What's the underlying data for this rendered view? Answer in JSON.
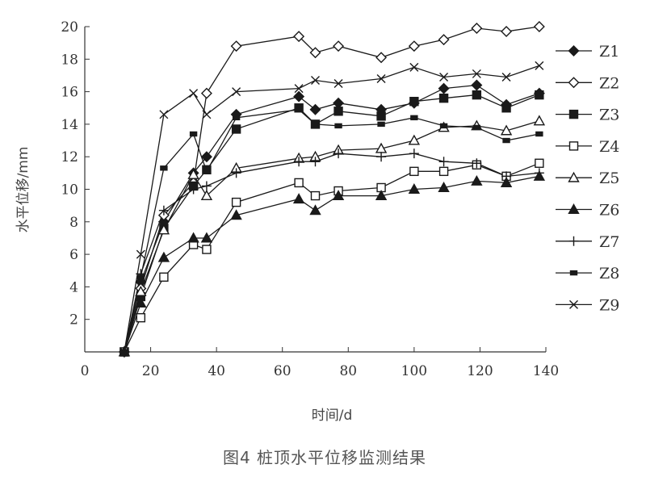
{
  "chart_data": {
    "type": "line",
    "caption": "图4    桩顶水平位移监测结果",
    "xlabel": "时间/d",
    "ylabel": "水平位移/mm",
    "xlim": [
      0,
      140
    ],
    "ylim": [
      0,
      20
    ],
    "xticks": [
      0,
      20,
      40,
      60,
      80,
      100,
      120,
      140
    ],
    "yticks": [
      2,
      4,
      6,
      8,
      10,
      12,
      14,
      16,
      18,
      20
    ],
    "grid": false,
    "legend_position": "right",
    "series": [
      {
        "name": "Z1",
        "marker": "diamond-filled",
        "points": [
          [
            12,
            0
          ],
          [
            17,
            4.3
          ],
          [
            24,
            8
          ],
          [
            33,
            11
          ],
          [
            37,
            12
          ],
          [
            46,
            14.6
          ],
          [
            65,
            15.7
          ],
          [
            70,
            14.9
          ],
          [
            77,
            15.3
          ],
          [
            90,
            14.9
          ],
          [
            100,
            15.3
          ],
          [
            109,
            16.2
          ],
          [
            119,
            16.4
          ],
          [
            128,
            15.2
          ],
          [
            138,
            15.9
          ]
        ]
      },
      {
        "name": "Z2",
        "marker": "diamond-open",
        "points": [
          [
            12,
            0
          ],
          [
            17,
            3.9
          ],
          [
            24,
            8.4
          ],
          [
            33,
            10.4
          ],
          [
            37,
            15.9
          ],
          [
            46,
            18.8
          ],
          [
            65,
            19.4
          ],
          [
            70,
            18.4
          ],
          [
            77,
            18.8
          ],
          [
            90,
            18.1
          ],
          [
            100,
            18.8
          ],
          [
            109,
            19.2
          ],
          [
            119,
            19.9
          ],
          [
            128,
            19.7
          ],
          [
            138,
            20
          ]
        ]
      },
      {
        "name": "Z3",
        "marker": "square-filled",
        "points": [
          [
            12,
            0
          ],
          [
            17,
            3.4
          ],
          [
            24,
            7.6
          ],
          [
            33,
            10.2
          ],
          [
            37,
            11.2
          ],
          [
            46,
            13.7
          ],
          [
            65,
            15
          ],
          [
            70,
            14
          ],
          [
            77,
            14.8
          ],
          [
            90,
            14.5
          ],
          [
            100,
            15.4
          ],
          [
            109,
            15.6
          ],
          [
            119,
            15.8
          ],
          [
            128,
            15
          ],
          [
            138,
            15.8
          ]
        ]
      },
      {
        "name": "Z4",
        "marker": "square-open",
        "points": [
          [
            12,
            0
          ],
          [
            17,
            2.1
          ],
          [
            24,
            4.6
          ],
          [
            33,
            6.6
          ],
          [
            37,
            6.3
          ],
          [
            46,
            9.2
          ],
          [
            65,
            10.4
          ],
          [
            70,
            9.6
          ],
          [
            77,
            9.9
          ],
          [
            90,
            10.1
          ],
          [
            100,
            11.1
          ],
          [
            109,
            11.1
          ],
          [
            119,
            11.5
          ],
          [
            128,
            10.8
          ],
          [
            138,
            11.6
          ]
        ]
      },
      {
        "name": "Z5",
        "marker": "triangle-open",
        "points": [
          [
            12,
            0
          ],
          [
            17,
            3.7
          ],
          [
            24,
            7.5
          ],
          [
            33,
            10.9
          ],
          [
            37,
            9.6
          ],
          [
            46,
            11.3
          ],
          [
            65,
            11.9
          ],
          [
            70,
            12
          ],
          [
            77,
            12.4
          ],
          [
            90,
            12.5
          ],
          [
            100,
            13
          ],
          [
            109,
            13.8
          ],
          [
            119,
            13.9
          ],
          [
            128,
            13.6
          ],
          [
            138,
            14.2
          ]
        ]
      },
      {
        "name": "Z6",
        "marker": "triangle-filled",
        "points": [
          [
            12,
            0
          ],
          [
            17,
            3
          ],
          [
            24,
            5.8
          ],
          [
            33,
            7
          ],
          [
            37,
            7
          ],
          [
            46,
            8.4
          ],
          [
            65,
            9.4
          ],
          [
            70,
            8.7
          ],
          [
            77,
            9.6
          ],
          [
            90,
            9.6
          ],
          [
            100,
            10
          ],
          [
            109,
            10.1
          ],
          [
            119,
            10.5
          ],
          [
            128,
            10.4
          ],
          [
            138,
            10.8
          ]
        ]
      },
      {
        "name": "Z7",
        "marker": "plus",
        "points": [
          [
            12,
            0
          ],
          [
            17,
            4.8
          ],
          [
            24,
            8.7
          ],
          [
            33,
            10
          ],
          [
            37,
            10.2
          ],
          [
            46,
            11
          ],
          [
            65,
            11.7
          ],
          [
            70,
            11.7
          ],
          [
            77,
            12.2
          ],
          [
            90,
            12
          ],
          [
            100,
            12.2
          ],
          [
            109,
            11.7
          ],
          [
            119,
            11.6
          ],
          [
            128,
            10.8
          ],
          [
            138,
            11
          ]
        ]
      },
      {
        "name": "Z8",
        "marker": "dash-square",
        "points": [
          [
            12,
            0
          ],
          [
            17,
            4.6
          ],
          [
            24,
            11.3
          ],
          [
            33,
            13.4
          ],
          [
            37,
            11.1
          ],
          [
            46,
            14.4
          ],
          [
            65,
            14.9
          ],
          [
            70,
            14
          ],
          [
            77,
            13.9
          ],
          [
            90,
            14
          ],
          [
            100,
            14.4
          ],
          [
            109,
            13.9
          ],
          [
            119,
            13.8
          ],
          [
            128,
            13
          ],
          [
            138,
            13.4
          ]
        ]
      },
      {
        "name": "Z9",
        "marker": "x",
        "points": [
          [
            12,
            0
          ],
          [
            17,
            6
          ],
          [
            24,
            14.6
          ],
          [
            33,
            15.9
          ],
          [
            37,
            14.6
          ],
          [
            46,
            16
          ],
          [
            65,
            16.2
          ],
          [
            70,
            16.7
          ],
          [
            77,
            16.5
          ],
          [
            90,
            16.8
          ],
          [
            100,
            17.5
          ],
          [
            109,
            16.9
          ],
          [
            119,
            17.1
          ],
          [
            128,
            16.9
          ],
          [
            138,
            17.6
          ]
        ]
      }
    ]
  }
}
